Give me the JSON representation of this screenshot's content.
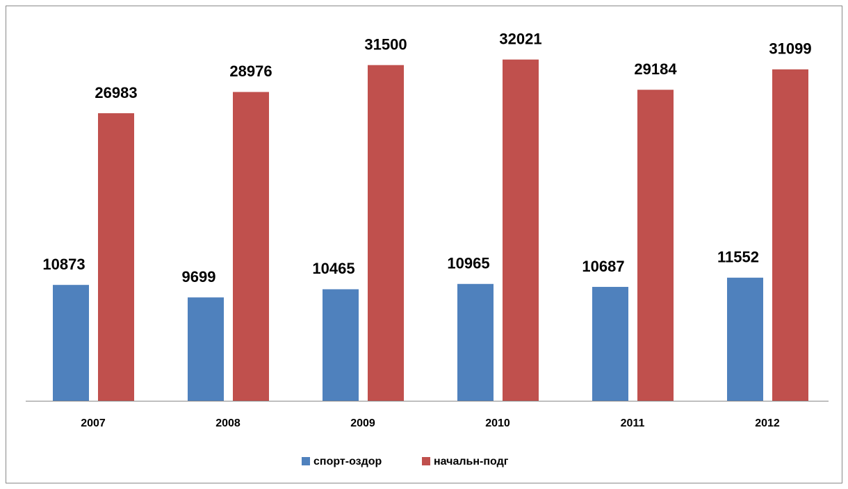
{
  "chart_data": {
    "type": "bar",
    "categories": [
      "2007",
      "2008",
      "2009",
      "2010",
      "2011",
      "2012"
    ],
    "series": [
      {
        "name": "спорт-оздор",
        "color": "#4f81bd",
        "values": [
          10873,
          9699,
          10465,
          10965,
          10687,
          11552
        ]
      },
      {
        "name": "начальн-подг",
        "color": "#c0504d",
        "values": [
          26983,
          28976,
          31500,
          32021,
          29184,
          31099
        ]
      }
    ],
    "ylim": [
      0,
      35000
    ],
    "legend": "bottom"
  }
}
